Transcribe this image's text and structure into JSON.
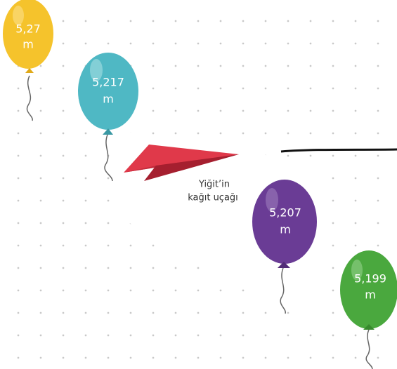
{
  "balloons": [
    {
      "value": "5,27",
      "unit": "m"
    },
    {
      "value": "5,217",
      "unit": "m"
    },
    {
      "value": "5,207",
      "unit": "m"
    },
    {
      "value": "5,199",
      "unit": "m"
    }
  ],
  "plane": {
    "label_lines": [
      "Yiğit’in",
      "kağıt uçağı"
    ]
  }
}
